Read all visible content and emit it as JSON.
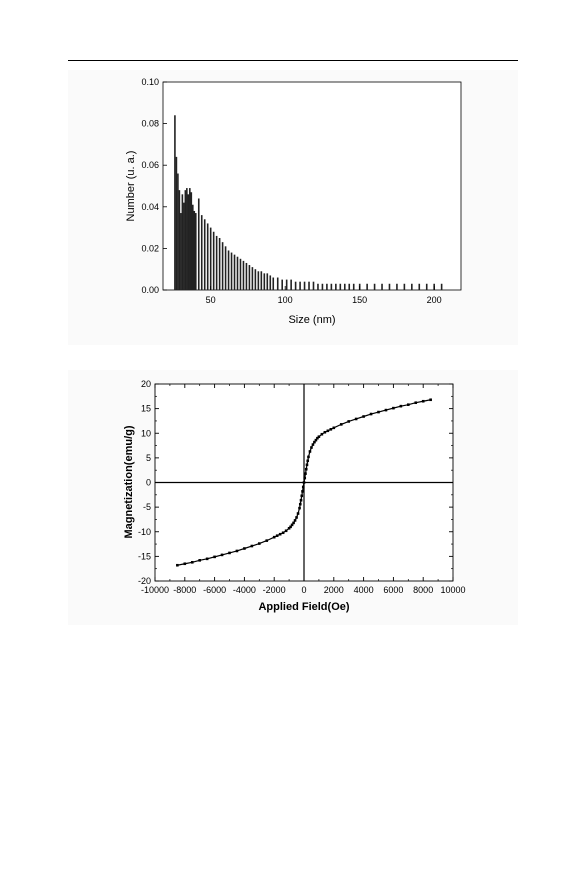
{
  "chart_data": [
    {
      "type": "bar",
      "xlabel": "Size (nm)",
      "ylabel": "Number (u. a.)",
      "xlim": [
        18,
        218
      ],
      "ylim": [
        0,
        0.1
      ],
      "xticks": [
        50,
        100,
        150,
        200
      ],
      "yticks": [
        0.0,
        0.02,
        0.04,
        0.06,
        0.08,
        0.1
      ],
      "ytick_labels": [
        "0.00",
        "0.02",
        "0.04",
        "0.06",
        "0.08",
        "0.10"
      ],
      "x": [
        26,
        27,
        28,
        29,
        30,
        31,
        32,
        33,
        34,
        35,
        36,
        37,
        38,
        39,
        40,
        42,
        44,
        46,
        48,
        50,
        52,
        54,
        56,
        58,
        60,
        62,
        64,
        66,
        68,
        70,
        72,
        74,
        76,
        78,
        80,
        82,
        84,
        86,
        88,
        90,
        92,
        95,
        98,
        101,
        104,
        107,
        110,
        113,
        116,
        119,
        122,
        125,
        128,
        131,
        134,
        137,
        140,
        143,
        146,
        150,
        155,
        160,
        165,
        170,
        175,
        180,
        185,
        190,
        195,
        200,
        205
      ],
      "values": [
        0.084,
        0.064,
        0.056,
        0.048,
        0.037,
        0.046,
        0.042,
        0.048,
        0.049,
        0.046,
        0.049,
        0.047,
        0.041,
        0.038,
        0.037,
        0.044,
        0.036,
        0.034,
        0.032,
        0.03,
        0.028,
        0.026,
        0.025,
        0.023,
        0.021,
        0.019,
        0.018,
        0.017,
        0.016,
        0.015,
        0.014,
        0.013,
        0.012,
        0.011,
        0.01,
        0.009,
        0.009,
        0.008,
        0.008,
        0.007,
        0.006,
        0.006,
        0.005,
        0.005,
        0.005,
        0.004,
        0.004,
        0.004,
        0.004,
        0.004,
        0.003,
        0.003,
        0.003,
        0.003,
        0.003,
        0.003,
        0.003,
        0.003,
        0.003,
        0.003,
        0.003,
        0.003,
        0.003,
        0.003,
        0.003,
        0.003,
        0.003,
        0.003,
        0.003,
        0.003,
        0.003
      ],
      "grid": false
    },
    {
      "type": "scatter",
      "xlabel": "Applied Field(Oe)",
      "ylabel": "Magnetization(emu/g)",
      "xlim": [
        -10000,
        10000
      ],
      "ylim": [
        -20,
        20
      ],
      "xticks": [
        -10000,
        -8000,
        -6000,
        -4000,
        -2000,
        0,
        2000,
        4000,
        6000,
        8000,
        10000
      ],
      "yticks": [
        -20,
        -15,
        -10,
        -5,
        0,
        5,
        10,
        15,
        20
      ],
      "zero_lines": true,
      "grid": false,
      "x": [
        -8500,
        -8000,
        -7500,
        -7000,
        -6500,
        -6000,
        -5500,
        -5000,
        -4500,
        -4000,
        -3500,
        -3000,
        -2500,
        -2000,
        -1800,
        -1600,
        -1400,
        -1200,
        -1000,
        -900,
        -800,
        -700,
        -600,
        -500,
        -400,
        -300,
        -250,
        -200,
        -150,
        -100,
        -50,
        0,
        50,
        100,
        150,
        200,
        250,
        300,
        400,
        500,
        600,
        700,
        800,
        900,
        1000,
        1200,
        1400,
        1600,
        1800,
        2000,
        2500,
        3000,
        3500,
        4000,
        4500,
        5000,
        5500,
        6000,
        6500,
        7000,
        7500,
        8000,
        8500
      ],
      "y": [
        -16.8,
        -16.5,
        -16.2,
        -15.8,
        -15.5,
        -15.1,
        -14.7,
        -14.3,
        -13.9,
        -13.4,
        -12.9,
        -12.4,
        -11.8,
        -11.1,
        -10.8,
        -10.5,
        -10.2,
        -9.8,
        -9.3,
        -9.0,
        -8.6,
        -8.2,
        -7.7,
        -7.1,
        -6.3,
        -5.2,
        -4.4,
        -3.6,
        -2.7,
        -1.8,
        -0.9,
        0.0,
        0.9,
        1.8,
        2.7,
        3.6,
        4.4,
        5.2,
        6.3,
        7.1,
        7.7,
        8.2,
        8.6,
        9.0,
        9.3,
        9.8,
        10.2,
        10.5,
        10.8,
        11.1,
        11.8,
        12.4,
        12.9,
        13.4,
        13.9,
        14.3,
        14.7,
        15.1,
        15.5,
        15.8,
        16.2,
        16.5,
        16.8
      ]
    }
  ]
}
